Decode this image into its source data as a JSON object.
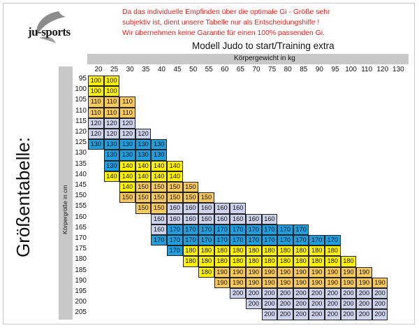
{
  "brand": {
    "logo_text": "ju-sports"
  },
  "disclaimer": [
    "Da das individuelle Empfinden über die optimale Gi - Größe sehr",
    "subjektiv ist, dient unsere Tabelle nur als Entscheidungshilfe !",
    "Wir übernehmen keine Garantie für einen 100% passenden Gi."
  ],
  "model_title": "Modell Judo to start/Training extra",
  "weight_axis_label": "Körpergewicht in kg",
  "height_axis_label": "Körpergröße in cm",
  "side_title": "Größentabelle:",
  "colors": {
    "yellow": "#fff200",
    "orange": "#f7c95c",
    "lavender": "#cdd3ec",
    "blue": "#1f9ee0"
  },
  "chart_data": {
    "type": "table",
    "columns": [
      20,
      25,
      30,
      35,
      40,
      45,
      50,
      55,
      60,
      65,
      70,
      75,
      80,
      85,
      90,
      95,
      100,
      110,
      120,
      130
    ],
    "rows": [
      {
        "height": 95,
        "start": 0,
        "sizes": [
          100,
          100
        ],
        "color": "yellow"
      },
      {
        "height": 100,
        "start": 0,
        "sizes": [
          100,
          100
        ],
        "color": "yellow"
      },
      {
        "height": 105,
        "start": 0,
        "sizes": [
          110,
          110,
          110
        ],
        "color": "orange"
      },
      {
        "height": 110,
        "start": 0,
        "sizes": [
          110,
          110,
          110
        ],
        "color": "orange"
      },
      {
        "height": 115,
        "start": 0,
        "sizes": [
          120,
          120,
          120
        ],
        "color": "lavender"
      },
      {
        "height": 120,
        "start": 0,
        "sizes": [
          120,
          120,
          120,
          120
        ],
        "color": "lavender"
      },
      {
        "height": 125,
        "start": 0,
        "sizes": [
          130,
          130,
          130,
          130,
          130
        ],
        "color": "blue"
      },
      {
        "height": 130,
        "start": 1,
        "sizes": [
          130,
          130,
          130,
          130
        ],
        "color": "blue"
      },
      {
        "height": 135,
        "start": 1,
        "sizes": [
          130,
          140,
          140,
          140,
          140
        ],
        "color": "mixed",
        "colors": [
          "blue",
          "yellow",
          "yellow",
          "yellow",
          "yellow"
        ]
      },
      {
        "height": 140,
        "start": 1,
        "sizes": [
          140,
          140,
          140,
          140,
          140
        ],
        "color": "yellow"
      },
      {
        "height": 145,
        "start": 2,
        "sizes": [
          140,
          150,
          150,
          150,
          150
        ],
        "color": "mixed",
        "colors": [
          "yellow",
          "orange",
          "orange",
          "orange",
          "orange"
        ]
      },
      {
        "height": 150,
        "start": 2,
        "sizes": [
          150,
          150,
          150,
          150,
          150,
          150
        ],
        "color": "orange"
      },
      {
        "height": 155,
        "start": 3,
        "sizes": [
          150,
          150,
          160,
          160,
          160,
          160,
          160
        ],
        "color": "mixed",
        "colors": [
          "orange",
          "orange",
          "lavender",
          "lavender",
          "lavender",
          "lavender",
          "lavender"
        ]
      },
      {
        "height": 160,
        "start": 4,
        "sizes": [
          160,
          160,
          160,
          160,
          160,
          160,
          160,
          160
        ],
        "color": "lavender"
      },
      {
        "height": 165,
        "start": 4,
        "sizes": [
          160,
          170,
          170,
          170,
          170,
          170,
          170,
          170,
          170,
          170
        ],
        "color": "mixed",
        "colors": [
          "lavender",
          "blue",
          "blue",
          "blue",
          "blue",
          "blue",
          "blue",
          "blue",
          "blue",
          "blue"
        ]
      },
      {
        "height": 170,
        "start": 4,
        "sizes": [
          170,
          170,
          170,
          170,
          170,
          170,
          170,
          170,
          170,
          170,
          170,
          170
        ],
        "color": "blue"
      },
      {
        "height": 175,
        "start": 5,
        "sizes": [
          170,
          180,
          180,
          180,
          180,
          180,
          180,
          180,
          180,
          180,
          180
        ],
        "color": "mixed",
        "colors": [
          "blue",
          "yellow",
          "yellow",
          "yellow",
          "yellow",
          "yellow",
          "yellow",
          "yellow",
          "yellow",
          "yellow",
          "yellow"
        ]
      },
      {
        "height": 180,
        "start": 6,
        "sizes": [
          180,
          180,
          180,
          180,
          180,
          180,
          180,
          180,
          180,
          180,
          180
        ],
        "color": "yellow"
      },
      {
        "height": 185,
        "start": 7,
        "sizes": [
          180,
          190,
          190,
          190,
          190,
          190,
          190,
          190,
          190,
          190,
          190
        ],
        "color": "mixed",
        "colors": [
          "yellow",
          "orange",
          "orange",
          "orange",
          "orange",
          "orange",
          "orange",
          "orange",
          "orange",
          "orange",
          "orange"
        ]
      },
      {
        "height": 190,
        "start": 8,
        "sizes": [
          190,
          190,
          190,
          190,
          190,
          190,
          190,
          190,
          190,
          190,
          190
        ],
        "color": "orange"
      },
      {
        "height": 195,
        "start": 9,
        "sizes": [
          200,
          200,
          200,
          200,
          200,
          200,
          200,
          200,
          200,
          200
        ],
        "color": "lavender"
      },
      {
        "height": 200,
        "start": 10,
        "sizes": [
          200,
          200,
          200,
          200,
          200,
          200,
          200,
          200,
          200
        ],
        "color": "lavender"
      },
      {
        "height": 205,
        "start": 11,
        "sizes": [
          200,
          200,
          200,
          200,
          200,
          200,
          200,
          200
        ],
        "color": "lavender"
      }
    ]
  }
}
